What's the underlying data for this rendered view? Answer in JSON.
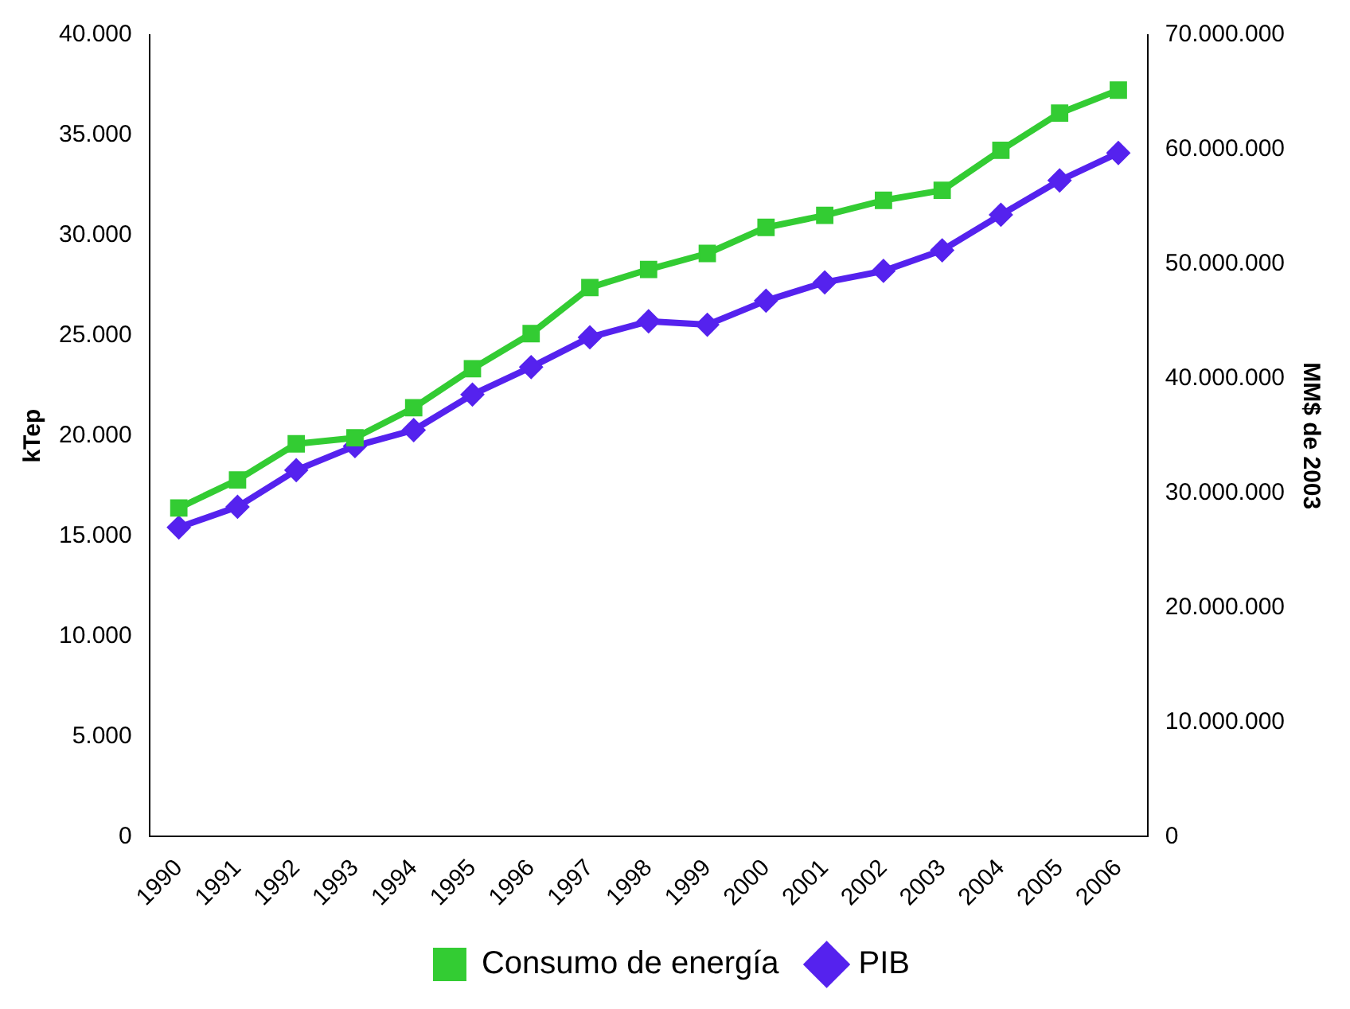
{
  "chart_data": {
    "type": "line",
    "ylabel": "kTep",
    "y2label": "MM$ de 2003",
    "categories": [
      "1990",
      "1991",
      "1992",
      "1993",
      "1994",
      "1995",
      "1996",
      "1997",
      "1998",
      "1999",
      "2000",
      "2001",
      "2002",
      "2003",
      "2004",
      "2005",
      "2006"
    ],
    "series": [
      {
        "name": "Consumo de energía",
        "color": "#33cc33",
        "marker": "square",
        "values": [
          16400,
          17800,
          19600,
          19900,
          21400,
          23350,
          25100,
          27400,
          28300,
          29100,
          30400,
          31000,
          31750,
          32250,
          34250,
          36100,
          37250
        ]
      },
      {
        "name": "PIB",
        "color": "#5522ee",
        "marker": "diamond",
        "axis": "y2",
        "values": [
          27000000,
          28800000,
          32000000,
          34100000,
          35500000,
          38600000,
          41000000,
          43600000,
          45000000,
          44700000,
          46800000,
          48400000,
          49400000,
          51200000,
          54300000,
          57300000,
          59700000
        ]
      }
    ],
    "ylim": [
      0,
      40000
    ],
    "yticks": [
      {
        "value": 0,
        "label": "0"
      },
      {
        "value": 5000,
        "label": "5.000"
      },
      {
        "value": 10000,
        "label": "10.000"
      },
      {
        "value": 15000,
        "label": "15.000"
      },
      {
        "value": 20000,
        "label": "20.000"
      },
      {
        "value": 25000,
        "label": "25.000"
      },
      {
        "value": 30000,
        "label": "30.000"
      },
      {
        "value": 35000,
        "label": "35.000"
      },
      {
        "value": 40000,
        "label": "40.000"
      }
    ],
    "y2lim": [
      0,
      70000000
    ],
    "y2ticks": [
      {
        "value": 0,
        "label": "0"
      },
      {
        "value": 10000000,
        "label": "10.000.000"
      },
      {
        "value": 20000000,
        "label": "20.000.000"
      },
      {
        "value": 30000000,
        "label": "30.000.000"
      },
      {
        "value": 40000000,
        "label": "40.000.000"
      },
      {
        "value": 50000000,
        "label": "50.000.000"
      },
      {
        "value": 60000000,
        "label": "60.000.000"
      },
      {
        "value": 70000000,
        "label": "70.000.000"
      }
    ],
    "grid": false,
    "legend": "bottom",
    "line_style": "solid"
  }
}
